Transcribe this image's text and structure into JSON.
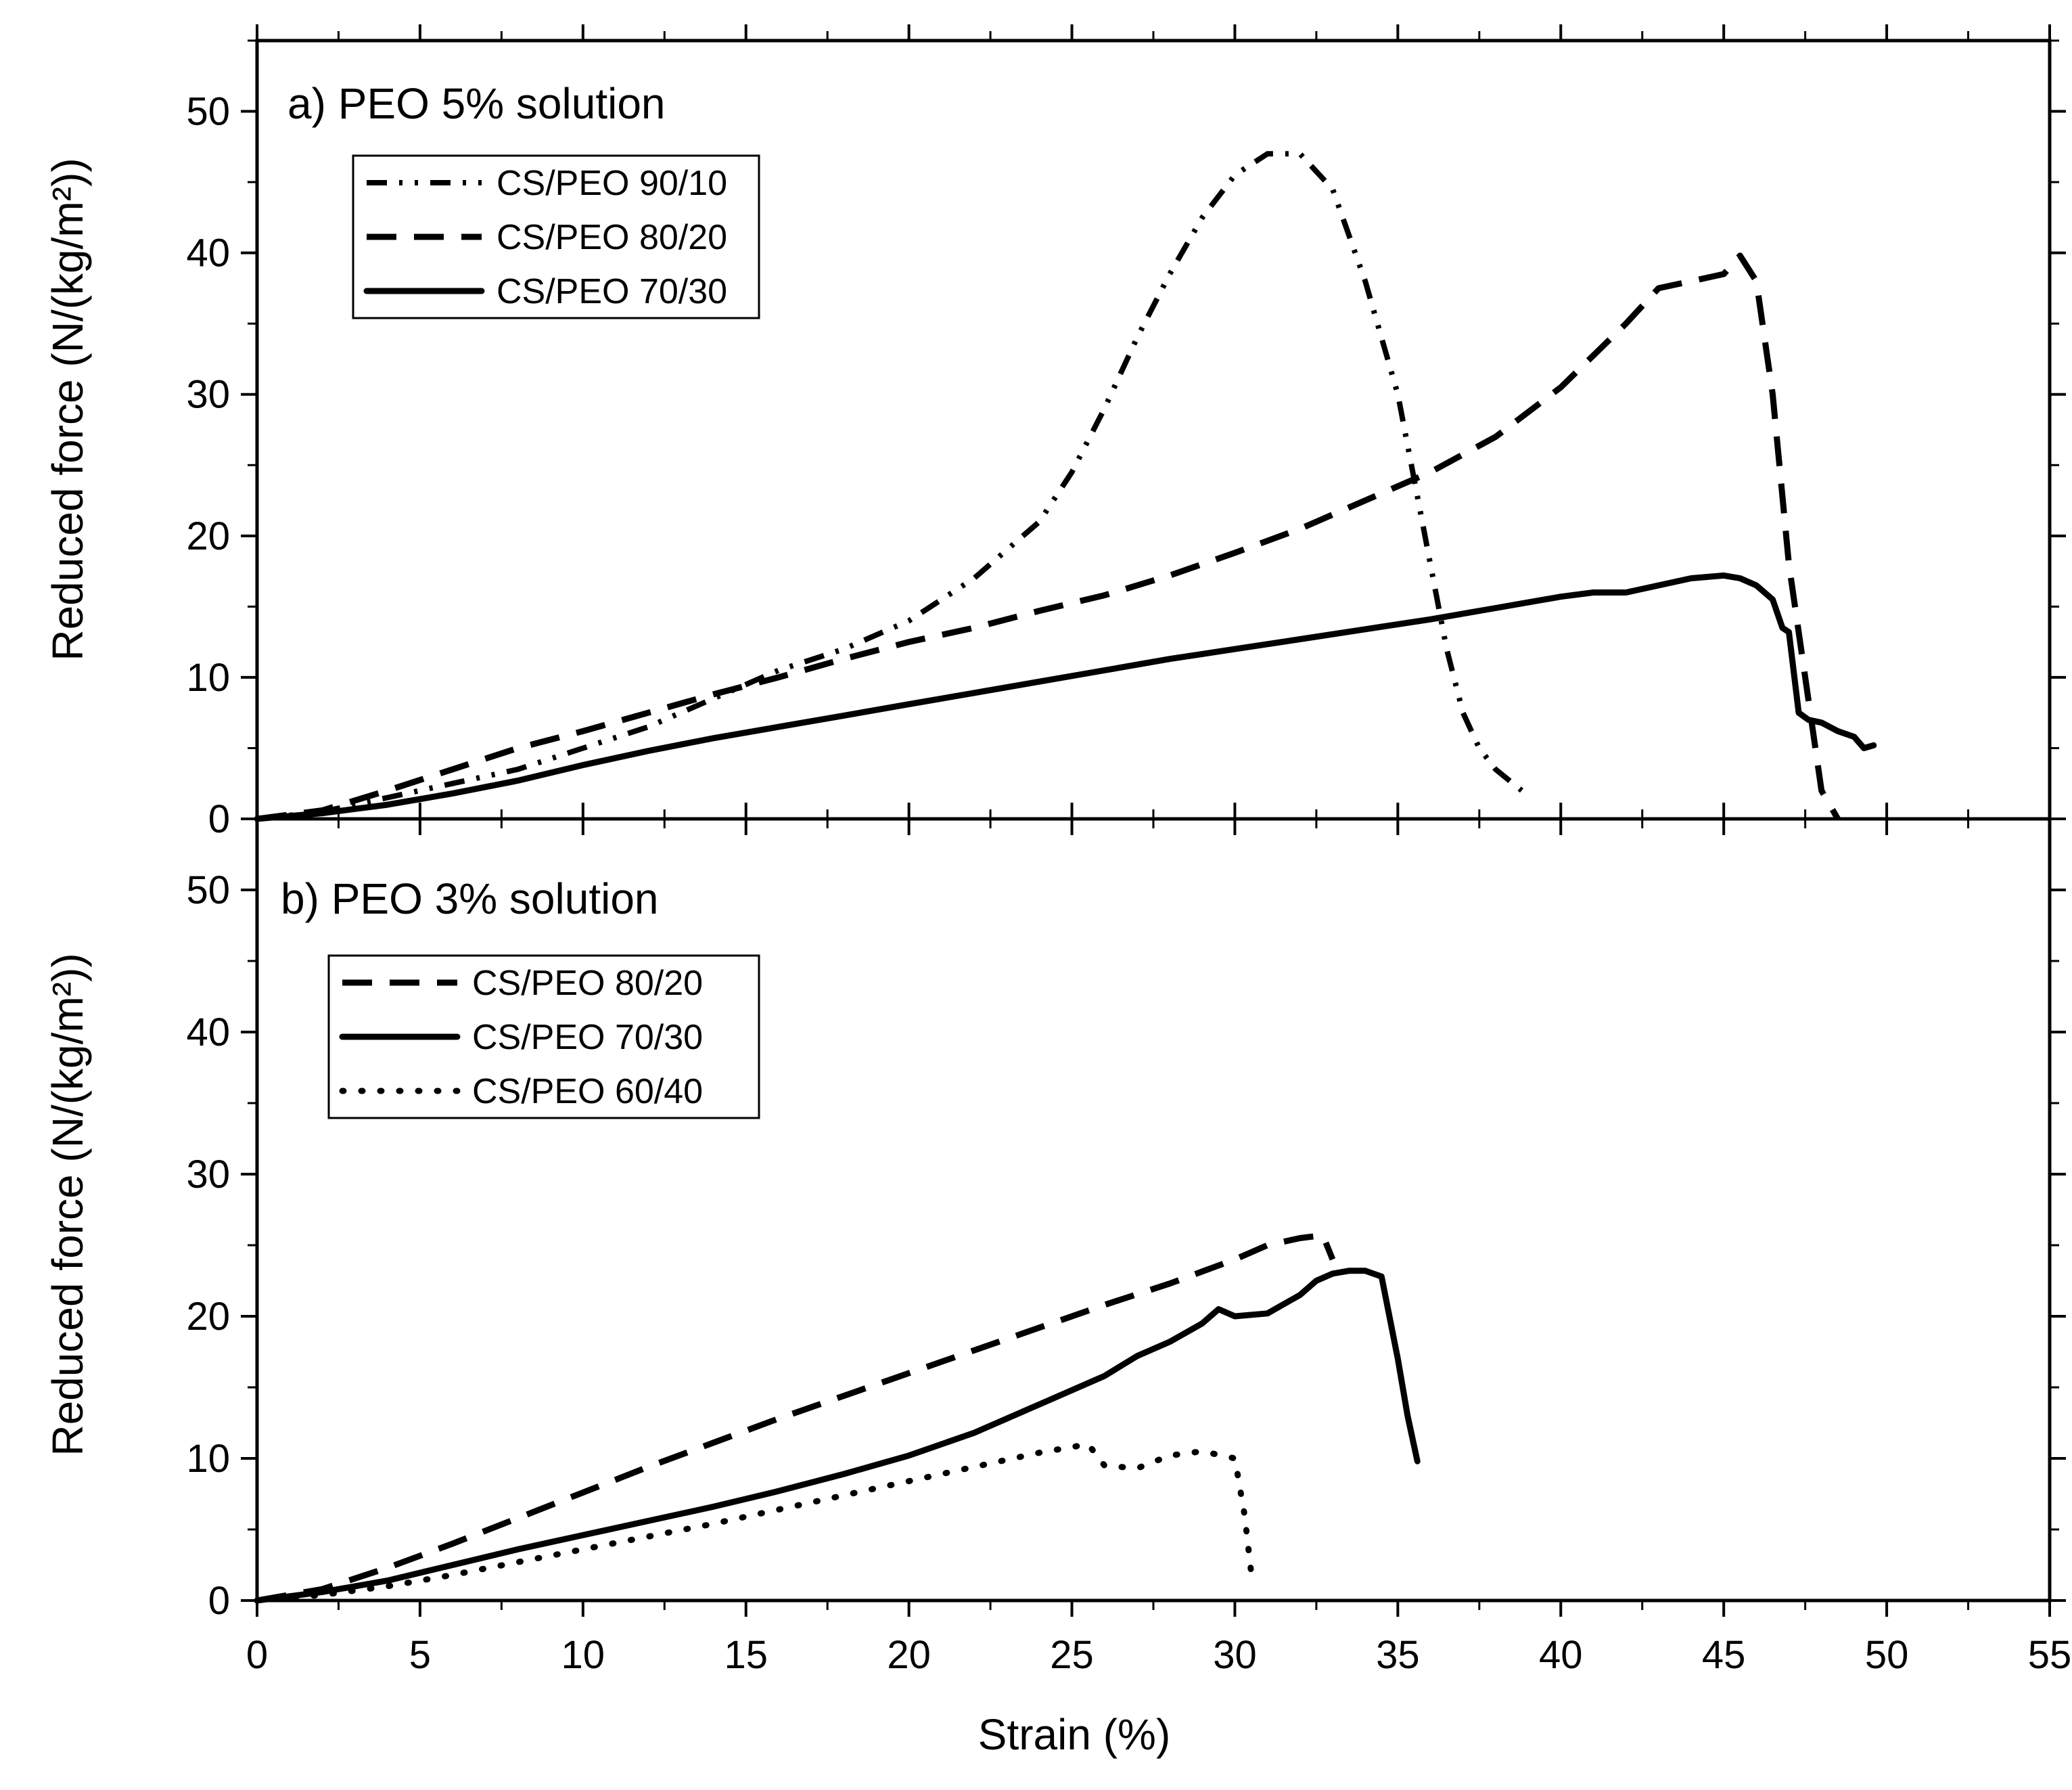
{
  "chart_data": [
    {
      "type": "line",
      "title": "a) PEO 5% solution",
      "xlabel": "Strain (%)",
      "ylabel": "Reduced force (N/(kg/m²))",
      "xlim": [
        0,
        55
      ],
      "ylim": [
        0,
        55
      ],
      "xticks": [
        0,
        5,
        10,
        15,
        20,
        25,
        30,
        35,
        40,
        45,
        50,
        55
      ],
      "yticks": [
        0,
        10,
        20,
        30,
        40,
        50
      ],
      "legend_position": "top-left",
      "series": [
        {
          "name": "CS/PEO 90/10",
          "style": "dash-dot-dot",
          "x": [
            0,
            2,
            4,
            6,
            8,
            10,
            12,
            14,
            16,
            18,
            20,
            22,
            24,
            25,
            26,
            27,
            28,
            29,
            30,
            31,
            32,
            33,
            34,
            35,
            35.5,
            36,
            36.5,
            37,
            37.5,
            38,
            38.8
          ],
          "y": [
            0,
            0.5,
            1.5,
            2.5,
            3.5,
            5,
            6.5,
            8.5,
            10.5,
            12,
            14,
            17,
            21,
            24.5,
            29,
            34,
            38.5,
            42.5,
            45.5,
            47,
            47,
            44.5,
            38,
            30,
            24,
            18,
            12,
            7.5,
            5,
            3.5,
            2
          ]
        },
        {
          "name": "CS/PEO 80/20",
          "style": "dash",
          "x": [
            0,
            2,
            4,
            6,
            8,
            10,
            12,
            14,
            16,
            18,
            20,
            22,
            24,
            26,
            28,
            30,
            32,
            34,
            36,
            38,
            40,
            42,
            43,
            44,
            45,
            45.5,
            46,
            46.5,
            47,
            47.5,
            48,
            48.5
          ],
          "y": [
            0,
            0.6,
            2,
            3.5,
            5,
            6.2,
            7.5,
            8.8,
            10,
            11.3,
            12.5,
            13.5,
            14.7,
            15.8,
            17.2,
            18.8,
            20.5,
            22.5,
            24.5,
            27,
            30.5,
            35,
            37.5,
            38,
            38.5,
            39.8,
            38,
            30,
            18,
            10,
            2,
            0
          ]
        },
        {
          "name": "CS/PEO 70/30",
          "style": "solid",
          "x": [
            0,
            2,
            4,
            6,
            8,
            10,
            12,
            14,
            16,
            18,
            20,
            22,
            24,
            26,
            28,
            30,
            32,
            34,
            36,
            38,
            40,
            41,
            42,
            43,
            44,
            45,
            45.5,
            46,
            46.5,
            46.8,
            47,
            47.3,
            47.6,
            48,
            48.5,
            49,
            49.3,
            49.6
          ],
          "y": [
            0,
            0.4,
            1,
            1.8,
            2.7,
            3.8,
            4.8,
            5.7,
            6.5,
            7.3,
            8.1,
            8.9,
            9.7,
            10.5,
            11.3,
            12,
            12.7,
            13.4,
            14.1,
            14.9,
            15.7,
            16,
            16,
            16.5,
            17,
            17.2,
            17,
            16.5,
            15.5,
            13.5,
            13.2,
            7.5,
            7,
            6.8,
            6.2,
            5.8,
            5,
            5.2
          ]
        }
      ]
    },
    {
      "type": "line",
      "title": "b) PEO 3% solution",
      "xlabel": "Strain (%)",
      "ylabel": "Reduced force (N/(kg/m²))",
      "xlim": [
        0,
        55
      ],
      "ylim": [
        0,
        55
      ],
      "xticks": [
        0,
        5,
        10,
        15,
        20,
        25,
        30,
        35,
        40,
        45,
        50,
        55
      ],
      "yticks": [
        0,
        10,
        20,
        30,
        40,
        50
      ],
      "legend_position": "top-left",
      "series": [
        {
          "name": "CS/PEO 80/20",
          "style": "dash",
          "x": [
            0,
            2,
            4,
            6,
            8,
            10,
            12,
            14,
            16,
            18,
            20,
            22,
            24,
            26,
            28,
            30,
            31,
            32,
            32.7,
            33
          ],
          "y": [
            0,
            0.8,
            2.3,
            4,
            5.8,
            7.6,
            9.4,
            11.1,
            12.8,
            14.4,
            16,
            17.6,
            19.2,
            20.8,
            22.3,
            24,
            25,
            25.5,
            25.7,
            24
          ]
        },
        {
          "name": "CS/PEO 70/30",
          "style": "solid",
          "x": [
            0,
            2,
            4,
            6,
            8,
            10,
            12,
            14,
            16,
            18,
            20,
            22,
            24,
            26,
            27,
            28,
            29,
            29.5,
            30,
            31,
            32,
            32.5,
            33,
            33.5,
            34,
            34.5,
            35,
            35.3,
            35.6
          ],
          "y": [
            0,
            0.6,
            1.4,
            2.5,
            3.6,
            4.6,
            5.6,
            6.6,
            7.7,
            8.9,
            10.2,
            11.8,
            13.8,
            15.8,
            17.2,
            18.2,
            19.5,
            20.5,
            20,
            20.2,
            21.5,
            22.5,
            23,
            23.2,
            23.2,
            22.8,
            17,
            13,
            9.8
          ]
        },
        {
          "name": "CS/PEO 60/40",
          "style": "dot",
          "x": [
            0,
            2,
            4,
            6,
            8,
            10,
            12,
            14,
            16,
            18,
            20,
            22,
            24,
            25.5,
            26,
            27,
            28,
            29,
            30,
            30.3,
            30.5
          ],
          "y": [
            0,
            0.4,
            1,
            1.8,
            2.7,
            3.6,
            4.5,
            5.4,
            6.4,
            7.4,
            8.4,
            9.4,
            10.4,
            11,
            9.5,
            9.3,
            10.2,
            10.5,
            10,
            6,
            2
          ]
        }
      ]
    }
  ]
}
